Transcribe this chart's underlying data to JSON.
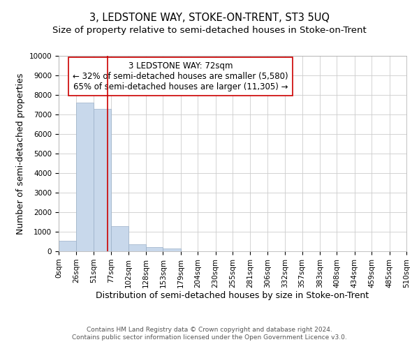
{
  "title": "3, LEDSTONE WAY, STOKE-ON-TRENT, ST3 5UQ",
  "subtitle": "Size of property relative to semi-detached houses in Stoke-on-Trent",
  "xlabel": "Distribution of semi-detached houses by size in Stoke-on-Trent",
  "ylabel": "Number of semi-detached properties",
  "footer_line1": "Contains HM Land Registry data © Crown copyright and database right 2024.",
  "footer_line2": "Contains public sector information licensed under the Open Government Licence v3.0.",
  "annotation_line1": "3 LEDSTONE WAY: 72sqm",
  "annotation_line2": "← 32% of semi-detached houses are smaller (5,580)",
  "annotation_line3": "65% of semi-detached houses are larger (11,305) →",
  "bar_edges": [
    0,
    26,
    51,
    77,
    102,
    128,
    153,
    179,
    204,
    230,
    255,
    281,
    306,
    332,
    357,
    383,
    408,
    434,
    459,
    485,
    510
  ],
  "bar_heights": [
    540,
    7600,
    7300,
    1300,
    350,
    200,
    150,
    0,
    0,
    0,
    0,
    0,
    0,
    0,
    0,
    0,
    0,
    0,
    0,
    0
  ],
  "bar_color": "#c8d8eb",
  "bar_edge_color": "#9ab0c8",
  "vline_color": "#cc0000",
  "vline_x": 72,
  "box_color": "#cc0000",
  "ylim": [
    0,
    10000
  ],
  "yticks": [
    0,
    1000,
    2000,
    3000,
    4000,
    5000,
    6000,
    7000,
    8000,
    9000,
    10000
  ],
  "grid_color": "#cccccc",
  "background_color": "#ffffff",
  "title_fontsize": 10.5,
  "subtitle_fontsize": 9.5,
  "axis_label_fontsize": 9,
  "tick_fontsize": 7.5,
  "annotation_fontsize": 8.5,
  "footer_fontsize": 6.5
}
